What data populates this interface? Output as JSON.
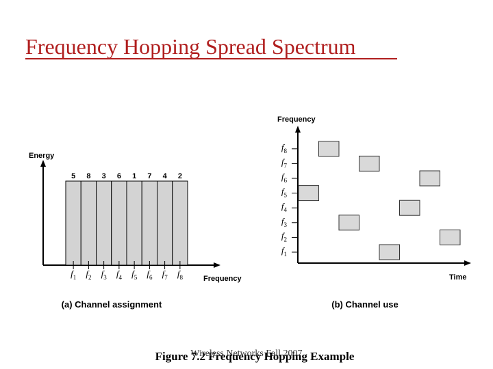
{
  "title": "Frequency Hopping Spread Spectrum",
  "figure_caption": "Figure 7.2  Frequency Hopping Example",
  "footer": "Wireless Networks Fall 2007",
  "channel_assignment": {
    "y_label": "Energy",
    "x_label": "Frequency",
    "caption": "(a) Channel assignment",
    "symbol": "f",
    "channels": [
      "1",
      "2",
      "3",
      "4",
      "5",
      "6",
      "7",
      "8"
    ],
    "hop_order": [
      5,
      8,
      3,
      6,
      1,
      7,
      4,
      2
    ]
  },
  "channel_use": {
    "y_label": "Frequency",
    "x_label": "Time",
    "caption": "(b) Channel use",
    "symbol": "f",
    "channels": [
      "1",
      "2",
      "3",
      "4",
      "5",
      "6",
      "7",
      "8"
    ]
  }
}
